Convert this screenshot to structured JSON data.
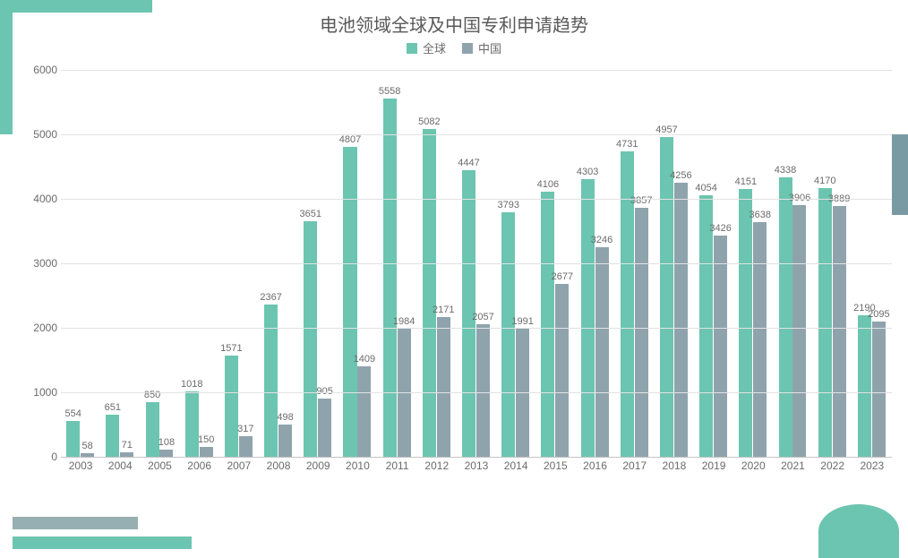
{
  "chart": {
    "type": "bar",
    "title": "电池领域全球及中国专利申请趋势",
    "title_fontsize": 20,
    "title_color": "#595959",
    "background_color": "#ffffff",
    "grid_color": "#e2e2e2",
    "axis_color": "#c5c5c5",
    "label_color": "#6b6b6b",
    "label_fontsize": 12,
    "bar_label_fontsize": 11,
    "ylim": [
      0,
      6000
    ],
    "ytick_step": 1000,
    "yticks": [
      0,
      1000,
      2000,
      3000,
      4000,
      5000,
      6000
    ],
    "categories": [
      "2003",
      "2004",
      "2005",
      "2006",
      "2007",
      "2008",
      "2009",
      "2010",
      "2011",
      "2012",
      "2013",
      "2014",
      "2015",
      "2016",
      "2017",
      "2018",
      "2019",
      "2020",
      "2021",
      "2022",
      "2023"
    ],
    "series": [
      {
        "name": "全球",
        "color": "#6cc5b0",
        "values": [
          554,
          651,
          850,
          1018,
          1571,
          2367,
          3651,
          4807,
          5558,
          5082,
          4447,
          3793,
          4106,
          4303,
          4731,
          4957,
          4054,
          4151,
          4338,
          4170,
          2190
        ]
      },
      {
        "name": "中国",
        "color": "#8fa3ad",
        "values": [
          58,
          71,
          108,
          150,
          317,
          498,
          905,
          1409,
          1984,
          2171,
          2057,
          1991,
          2677,
          3246,
          3857,
          4256,
          3426,
          3638,
          3906,
          3889,
          2095
        ]
      }
    ],
    "legend_position": "top",
    "bar_group_width": 0.72,
    "decorations": {
      "corner_tl_color": "#6cc5b0",
      "side_right_color": "#7a9aa3",
      "bottom_bar1_color": "#96afb3",
      "bottom_bar2_color": "#6cc5b0",
      "corner_br_color": "#6cc5b0"
    }
  }
}
